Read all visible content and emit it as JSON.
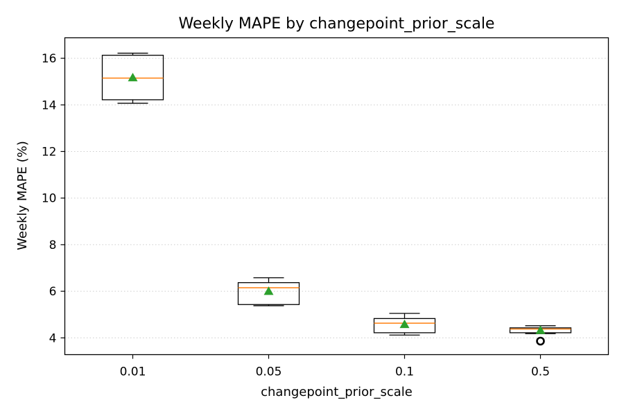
{
  "chart_data": {
    "type": "box",
    "title": "Weekly MAPE by changepoint_prior_scale",
    "xlabel": "changepoint_prior_scale",
    "ylabel": "Weekly MAPE (%)",
    "ylim": [
      3.28,
      16.88
    ],
    "yticks": [
      4,
      6,
      8,
      10,
      12,
      14,
      16
    ],
    "grid": "y-axis, dotted",
    "legend": "none",
    "categories": [
      "0.01",
      "0.05",
      "0.1",
      "0.5"
    ],
    "boxes": [
      {
        "category": "0.01",
        "whisker_low": 14.07,
        "q1": 14.22,
        "median": 15.15,
        "q3": 16.13,
        "whisker_high": 16.22,
        "mean": 15.17,
        "outliers": []
      },
      {
        "category": "0.05",
        "whisker_low": 5.38,
        "q1": 5.43,
        "median": 6.15,
        "q3": 6.37,
        "whisker_high": 6.58,
        "mean": 6.0,
        "outliers": []
      },
      {
        "category": "0.1",
        "whisker_low": 4.12,
        "q1": 4.22,
        "median": 4.63,
        "q3": 4.83,
        "whisker_high": 5.05,
        "mean": 4.58,
        "outliers": []
      },
      {
        "category": "0.5",
        "whisker_low": 4.18,
        "q1": 4.22,
        "median": 4.38,
        "q3": 4.43,
        "whisker_high": 4.52,
        "mean": 4.32,
        "outliers": [
          3.86
        ]
      }
    ],
    "colors": {
      "box": "#000000",
      "median": "#ff7f0e",
      "mean": "#2ca02c",
      "grid": "#cccccc"
    }
  }
}
